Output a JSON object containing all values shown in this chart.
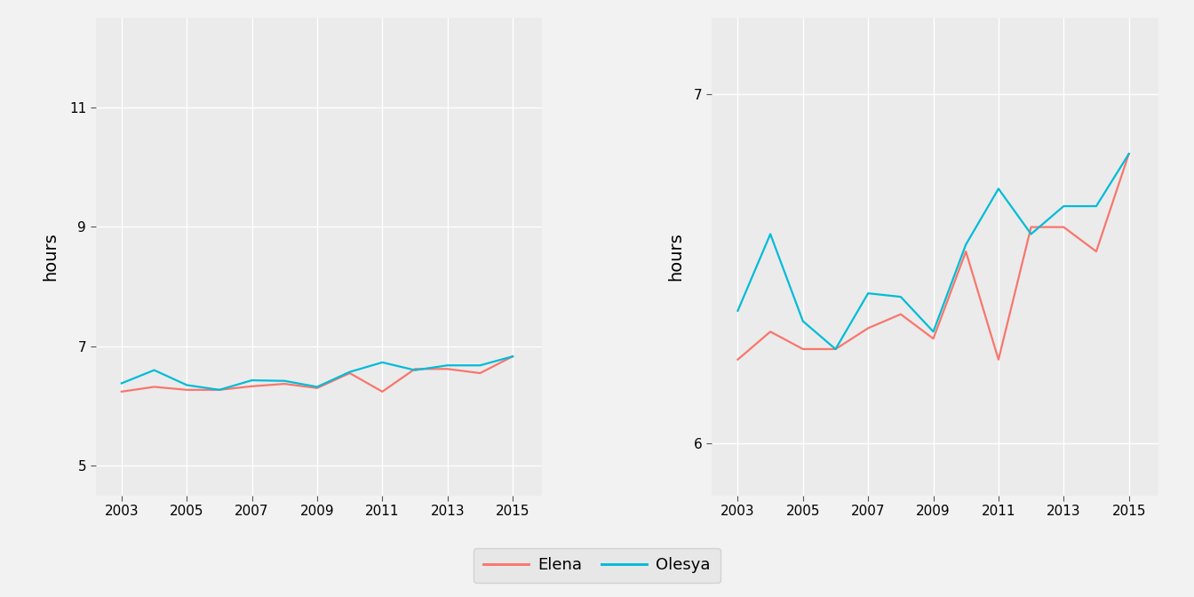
{
  "years": [
    2003,
    2004,
    2005,
    2006,
    2007,
    2008,
    2009,
    2010,
    2011,
    2012,
    2013,
    2014,
    2015
  ],
  "elena": [
    6.24,
    6.32,
    6.27,
    6.27,
    6.33,
    6.37,
    6.3,
    6.55,
    6.24,
    6.62,
    6.62,
    6.55,
    6.83
  ],
  "olesya": [
    6.38,
    6.6,
    6.35,
    6.27,
    6.43,
    6.42,
    6.32,
    6.57,
    6.73,
    6.6,
    6.68,
    6.68,
    6.83
  ],
  "elena_color": "#F8766D",
  "olesya_color": "#00BCD8",
  "bg_color": "#EBEBEB",
  "fig_bg": "#F2F2F2",
  "grid_color": "#FFFFFF",
  "ylabel": "hours",
  "left_yticks": [
    5,
    7,
    9,
    11
  ],
  "left_ylim": [
    4.5,
    12.5
  ],
  "right_yticks": [
    6,
    7
  ],
  "right_ylim": [
    5.85,
    7.22
  ],
  "xticks": [
    2003,
    2005,
    2007,
    2009,
    2011,
    2013,
    2015
  ],
  "xlim": [
    2002.2,
    2015.9
  ],
  "legend_labels": [
    "Elena",
    "Olesya"
  ],
  "line_width": 1.6
}
